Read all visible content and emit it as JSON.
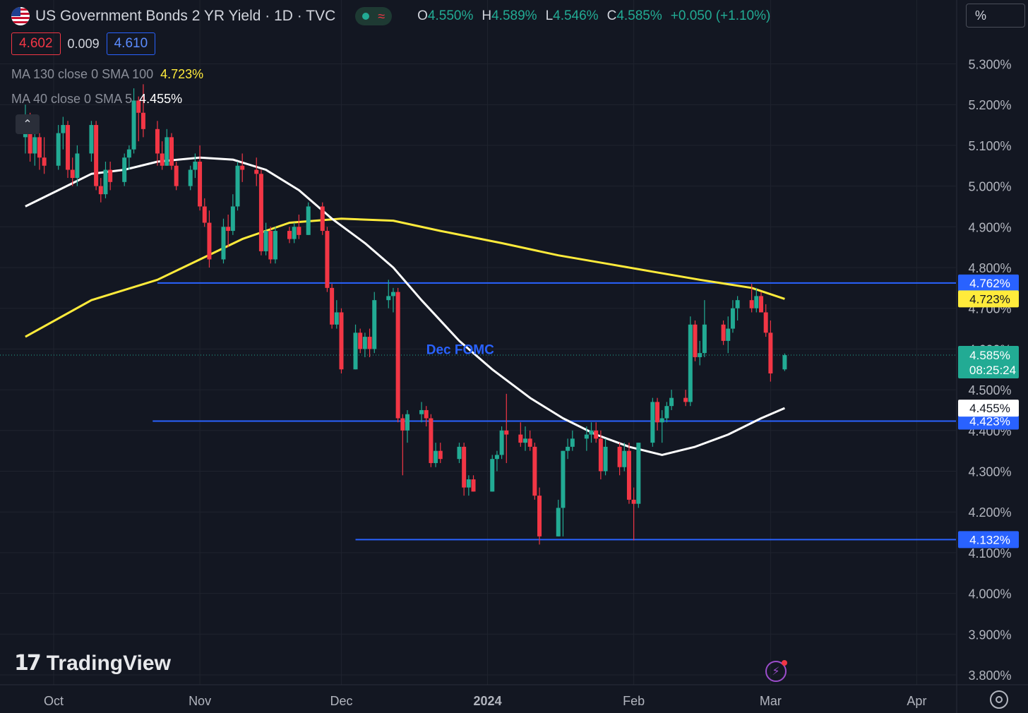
{
  "header": {
    "title": "US Government Bonds 2 YR Yield · 1D · TVC",
    "ohlc": [
      {
        "key": "O",
        "value": "4.550%"
      },
      {
        "key": "H",
        "value": "4.589%"
      },
      {
        "key": "L",
        "value": "4.546%"
      },
      {
        "key": "C",
        "value": "4.585%"
      }
    ],
    "change": "+0.050 (+1.10%)",
    "sell": "4.602",
    "spread": "0.009",
    "buy": "4.610",
    "scale_mode": "%"
  },
  "indicators": [
    {
      "label": "MA 130 close 0 SMA 100",
      "value": "4.723%",
      "color": "#ffeb3b"
    },
    {
      "label": "MA 40 close 0 SMA 5",
      "value": "4.455%",
      "color": "#ffffff"
    }
  ],
  "branding": {
    "logo": "TradingView"
  },
  "icons": {
    "settings": "gear-icon",
    "alert": "lightning-alert-icon",
    "collapse": "chevron-up-icon"
  },
  "chart_data": {
    "type": "candlestick",
    "title": "US Government Bonds 2 YR Yield · 1D · TVC",
    "ylim": [
      3.77,
      5.36
    ],
    "y_ticks": [
      "5.300%",
      "5.200%",
      "5.100%",
      "5.000%",
      "4.900%",
      "4.800%",
      "4.700%",
      "4.600%",
      "4.500%",
      "4.400%",
      "4.300%",
      "4.200%",
      "4.100%",
      "4.000%",
      "3.900%",
      "3.800%"
    ],
    "x_labels": [
      {
        "label": "Oct",
        "date": "2023-10-01",
        "bold": false
      },
      {
        "label": "Nov",
        "date": "2023-11-01",
        "bold": false
      },
      {
        "label": "Dec",
        "date": "2023-12-01",
        "bold": false
      },
      {
        "label": "2024",
        "date": "2024-01-01",
        "bold": true
      },
      {
        "label": "Feb",
        "date": "2024-02-01",
        "bold": false
      },
      {
        "label": "Mar",
        "date": "2024-03-01",
        "bold": false
      },
      {
        "label": "Apr",
        "date": "2024-04-01",
        "bold": false
      }
    ],
    "candles": [
      {
        "d": "2023-09-25",
        "o": 5.12,
        "h": 5.2,
        "l": 5.08,
        "c": 5.16
      },
      {
        "d": "2023-09-26",
        "o": 5.16,
        "h": 5.18,
        "l": 5.06,
        "c": 5.08
      },
      {
        "d": "2023-09-27",
        "o": 5.08,
        "h": 5.14,
        "l": 5.05,
        "c": 5.12
      },
      {
        "d": "2023-09-28",
        "o": 5.12,
        "h": 5.13,
        "l": 5.04,
        "c": 5.07
      },
      {
        "d": "2023-09-29",
        "o": 5.07,
        "h": 5.12,
        "l": 5.03,
        "c": 5.05
      },
      {
        "d": "2023-10-02",
        "o": 5.05,
        "h": 5.15,
        "l": 5.04,
        "c": 5.13
      },
      {
        "d": "2023-10-03",
        "o": 5.13,
        "h": 5.17,
        "l": 5.09,
        "c": 5.15
      },
      {
        "d": "2023-10-04",
        "o": 5.15,
        "h": 5.16,
        "l": 5.02,
        "c": 5.04
      },
      {
        "d": "2023-10-05",
        "o": 5.04,
        "h": 5.07,
        "l": 5.0,
        "c": 5.02
      },
      {
        "d": "2023-10-06",
        "o": 5.02,
        "h": 5.1,
        "l": 5.0,
        "c": 5.08
      },
      {
        "d": "2023-10-09",
        "o": 5.08,
        "h": 5.16,
        "l": 5.06,
        "c": 5.15
      },
      {
        "d": "2023-10-10",
        "o": 5.15,
        "h": 5.16,
        "l": 4.99,
        "c": 5.0
      },
      {
        "d": "2023-10-11",
        "o": 5.0,
        "h": 5.02,
        "l": 4.96,
        "c": 4.98
      },
      {
        "d": "2023-10-12",
        "o": 4.98,
        "h": 5.06,
        "l": 4.97,
        "c": 5.04
      },
      {
        "d": "2023-10-13",
        "o": 5.04,
        "h": 5.06,
        "l": 4.99,
        "c": 5.01
      },
      {
        "d": "2023-10-16",
        "o": 5.01,
        "h": 5.08,
        "l": 5.0,
        "c": 5.07
      },
      {
        "d": "2023-10-17",
        "o": 5.07,
        "h": 5.1,
        "l": 5.04,
        "c": 5.09
      },
      {
        "d": "2023-10-18",
        "o": 5.09,
        "h": 5.24,
        "l": 5.08,
        "c": 5.21
      },
      {
        "d": "2023-10-19",
        "o": 5.21,
        "h": 5.22,
        "l": 5.11,
        "c": 5.18
      },
      {
        "d": "2023-10-20",
        "o": 5.18,
        "h": 5.25,
        "l": 5.12,
        "c": 5.14
      },
      {
        "d": "2023-10-23",
        "o": 5.14,
        "h": 5.16,
        "l": 5.05,
        "c": 5.08
      },
      {
        "d": "2023-10-24",
        "o": 5.08,
        "h": 5.11,
        "l": 5.04,
        "c": 5.05
      },
      {
        "d": "2023-10-25",
        "o": 5.05,
        "h": 5.14,
        "l": 5.05,
        "c": 5.12
      },
      {
        "d": "2023-10-26",
        "o": 5.12,
        "h": 5.13,
        "l": 5.04,
        "c": 5.05
      },
      {
        "d": "2023-10-27",
        "o": 5.05,
        "h": 5.06,
        "l": 4.99,
        "c": 5.0
      },
      {
        "d": "2023-10-30",
        "o": 5.0,
        "h": 5.05,
        "l": 4.99,
        "c": 5.04
      },
      {
        "d": "2023-10-31",
        "o": 5.04,
        "h": 5.08,
        "l": 5.02,
        "c": 5.06
      },
      {
        "d": "2023-11-01",
        "o": 5.06,
        "h": 5.1,
        "l": 4.94,
        "c": 4.95
      },
      {
        "d": "2023-11-02",
        "o": 4.95,
        "h": 4.97,
        "l": 4.9,
        "c": 4.91
      },
      {
        "d": "2023-11-03",
        "o": 4.91,
        "h": 4.94,
        "l": 4.8,
        "c": 4.82
      },
      {
        "d": "2023-11-06",
        "o": 4.82,
        "h": 4.92,
        "l": 4.81,
        "c": 4.9
      },
      {
        "d": "2023-11-07",
        "o": 4.9,
        "h": 4.93,
        "l": 4.85,
        "c": 4.89
      },
      {
        "d": "2023-11-08",
        "o": 4.89,
        "h": 4.98,
        "l": 4.88,
        "c": 4.95
      },
      {
        "d": "2023-11-09",
        "o": 4.95,
        "h": 5.06,
        "l": 4.94,
        "c": 5.05
      },
      {
        "d": "2023-11-10",
        "o": 5.05,
        "h": 5.08,
        "l": 5.01,
        "c": 5.04
      },
      {
        "d": "2023-11-13",
        "o": 5.04,
        "h": 5.07,
        "l": 5.0,
        "c": 5.03
      },
      {
        "d": "2023-11-14",
        "o": 5.03,
        "h": 5.04,
        "l": 4.83,
        "c": 4.84
      },
      {
        "d": "2023-11-15",
        "o": 4.84,
        "h": 4.91,
        "l": 4.83,
        "c": 4.89
      },
      {
        "d": "2023-11-16",
        "o": 4.89,
        "h": 4.9,
        "l": 4.81,
        "c": 4.82
      },
      {
        "d": "2023-11-17",
        "o": 4.82,
        "h": 4.9,
        "l": 4.81,
        "c": 4.89
      },
      {
        "d": "2023-11-20",
        "o": 4.89,
        "h": 4.9,
        "l": 4.86,
        "c": 4.87
      },
      {
        "d": "2023-11-21",
        "o": 4.87,
        "h": 4.91,
        "l": 4.86,
        "c": 4.9
      },
      {
        "d": "2023-11-22",
        "o": 4.9,
        "h": 4.93,
        "l": 4.87,
        "c": 4.88
      },
      {
        "d": "2023-11-24",
        "o": 4.88,
        "h": 4.96,
        "l": 4.88,
        "c": 4.95
      },
      {
        "d": "2023-11-27",
        "o": 4.95,
        "h": 4.96,
        "l": 4.88,
        "c": 4.89
      },
      {
        "d": "2023-11-28",
        "o": 4.89,
        "h": 4.9,
        "l": 4.74,
        "c": 4.75
      },
      {
        "d": "2023-11-29",
        "o": 4.75,
        "h": 4.76,
        "l": 4.65,
        "c": 4.66
      },
      {
        "d": "2023-11-30",
        "o": 4.66,
        "h": 4.72,
        "l": 4.65,
        "c": 4.69
      },
      {
        "d": "2023-12-01",
        "o": 4.69,
        "h": 4.7,
        "l": 4.54,
        "c": 4.55
      },
      {
        "d": "2023-12-04",
        "o": 4.55,
        "h": 4.66,
        "l": 4.55,
        "c": 4.64
      },
      {
        "d": "2023-12-05",
        "o": 4.64,
        "h": 4.65,
        "l": 4.59,
        "c": 4.6
      },
      {
        "d": "2023-12-06",
        "o": 4.6,
        "h": 4.64,
        "l": 4.58,
        "c": 4.63
      },
      {
        "d": "2023-12-07",
        "o": 4.63,
        "h": 4.65,
        "l": 4.58,
        "c": 4.6
      },
      {
        "d": "2023-12-08",
        "o": 4.6,
        "h": 4.74,
        "l": 4.59,
        "c": 4.72
      },
      {
        "d": "2023-12-11",
        "o": 4.72,
        "h": 4.77,
        "l": 4.7,
        "c": 4.73
      },
      {
        "d": "2023-12-12",
        "o": 4.73,
        "h": 4.75,
        "l": 4.69,
        "c": 4.74
      },
      {
        "d": "2023-12-13",
        "o": 4.74,
        "h": 4.75,
        "l": 4.42,
        "c": 4.43
      },
      {
        "d": "2023-12-14",
        "o": 4.43,
        "h": 4.44,
        "l": 4.29,
        "c": 4.4
      },
      {
        "d": "2023-12-15",
        "o": 4.4,
        "h": 4.45,
        "l": 4.37,
        "c": 4.44
      },
      {
        "d": "2023-12-18",
        "o": 4.44,
        "h": 4.47,
        "l": 4.42,
        "c": 4.45
      },
      {
        "d": "2023-12-19",
        "o": 4.45,
        "h": 4.46,
        "l": 4.41,
        "c": 4.43
      },
      {
        "d": "2023-12-20",
        "o": 4.43,
        "h": 4.44,
        "l": 4.31,
        "c": 4.32
      },
      {
        "d": "2023-12-21",
        "o": 4.32,
        "h": 4.37,
        "l": 4.31,
        "c": 4.35
      },
      {
        "d": "2023-12-22",
        "o": 4.35,
        "h": 4.37,
        "l": 4.32,
        "c": 4.33
      },
      {
        "d": "2023-12-26",
        "o": 4.33,
        "h": 4.37,
        "l": 4.32,
        "c": 4.36
      },
      {
        "d": "2023-12-27",
        "o": 4.36,
        "h": 4.37,
        "l": 4.24,
        "c": 4.26
      },
      {
        "d": "2023-12-28",
        "o": 4.26,
        "h": 4.29,
        "l": 4.24,
        "c": 4.28
      },
      {
        "d": "2023-12-29",
        "o": 4.28,
        "h": 4.29,
        "l": 4.25,
        "c": 4.25
      },
      {
        "d": "2024-01-02",
        "o": 4.25,
        "h": 4.34,
        "l": 4.25,
        "c": 4.33
      },
      {
        "d": "2024-01-03",
        "o": 4.33,
        "h": 4.35,
        "l": 4.3,
        "c": 4.34
      },
      {
        "d": "2024-01-04",
        "o": 4.34,
        "h": 4.41,
        "l": 4.33,
        "c": 4.4
      },
      {
        "d": "2024-01-05",
        "o": 4.4,
        "h": 4.49,
        "l": 4.32,
        "c": 4.39
      },
      {
        "d": "2024-01-08",
        "o": 4.39,
        "h": 4.42,
        "l": 4.36,
        "c": 4.37
      },
      {
        "d": "2024-01-09",
        "o": 4.37,
        "h": 4.41,
        "l": 4.35,
        "c": 4.38
      },
      {
        "d": "2024-01-10",
        "o": 4.38,
        "h": 4.4,
        "l": 4.35,
        "c": 4.36
      },
      {
        "d": "2024-01-11",
        "o": 4.36,
        "h": 4.37,
        "l": 4.23,
        "c": 4.24
      },
      {
        "d": "2024-01-12",
        "o": 4.24,
        "h": 4.26,
        "l": 4.12,
        "c": 4.14
      },
      {
        "d": "2024-01-16",
        "o": 4.14,
        "h": 4.23,
        "l": 4.14,
        "c": 4.21
      },
      {
        "d": "2024-01-17",
        "o": 4.21,
        "h": 4.35,
        "l": 4.14,
        "c": 4.35
      },
      {
        "d": "2024-01-18",
        "o": 4.35,
        "h": 4.38,
        "l": 4.33,
        "c": 4.36
      },
      {
        "d": "2024-01-19",
        "o": 4.36,
        "h": 4.4,
        "l": 4.35,
        "c": 4.38
      },
      {
        "d": "2024-01-22",
        "o": 4.38,
        "h": 4.41,
        "l": 4.35,
        "c": 4.39
      },
      {
        "d": "2024-01-23",
        "o": 4.39,
        "h": 4.42,
        "l": 4.37,
        "c": 4.4
      },
      {
        "d": "2024-01-24",
        "o": 4.4,
        "h": 4.42,
        "l": 4.37,
        "c": 4.38
      },
      {
        "d": "2024-01-25",
        "o": 4.38,
        "h": 4.4,
        "l": 4.28,
        "c": 4.3
      },
      {
        "d": "2024-01-26",
        "o": 4.3,
        "h": 4.38,
        "l": 4.29,
        "c": 4.36
      },
      {
        "d": "2024-01-29",
        "o": 4.36,
        "h": 4.37,
        "l": 4.29,
        "c": 4.31
      },
      {
        "d": "2024-01-30",
        "o": 4.31,
        "h": 4.37,
        "l": 4.3,
        "c": 4.35
      },
      {
        "d": "2024-01-31",
        "o": 4.35,
        "h": 4.37,
        "l": 4.22,
        "c": 4.23
      },
      {
        "d": "2024-02-01",
        "o": 4.23,
        "h": 4.26,
        "l": 4.13,
        "c": 4.22
      },
      {
        "d": "2024-02-02",
        "o": 4.22,
        "h": 4.37,
        "l": 4.21,
        "c": 4.37
      },
      {
        "d": "2024-02-05",
        "o": 4.37,
        "h": 4.48,
        "l": 4.36,
        "c": 4.47
      },
      {
        "d": "2024-02-06",
        "o": 4.47,
        "h": 4.48,
        "l": 4.4,
        "c": 4.42
      },
      {
        "d": "2024-02-07",
        "o": 4.42,
        "h": 4.45,
        "l": 4.37,
        "c": 4.43
      },
      {
        "d": "2024-02-08",
        "o": 4.43,
        "h": 4.47,
        "l": 4.42,
        "c": 4.46
      },
      {
        "d": "2024-02-09",
        "o": 4.46,
        "h": 4.5,
        "l": 4.45,
        "c": 4.48
      },
      {
        "d": "2024-02-12",
        "o": 4.48,
        "h": 4.5,
        "l": 4.46,
        "c": 4.47
      },
      {
        "d": "2024-02-13",
        "o": 4.47,
        "h": 4.68,
        "l": 4.46,
        "c": 4.66
      },
      {
        "d": "2024-02-14",
        "o": 4.66,
        "h": 4.67,
        "l": 4.57,
        "c": 4.58
      },
      {
        "d": "2024-02-15",
        "o": 4.58,
        "h": 4.62,
        "l": 4.56,
        "c": 4.59
      },
      {
        "d": "2024-02-16",
        "o": 4.59,
        "h": 4.72,
        "l": 4.58,
        "c": 4.66
      },
      {
        "d": "2024-02-20",
        "o": 4.66,
        "h": 4.67,
        "l": 4.61,
        "c": 4.62
      },
      {
        "d": "2024-02-21",
        "o": 4.62,
        "h": 4.68,
        "l": 4.59,
        "c": 4.65
      },
      {
        "d": "2024-02-22",
        "o": 4.65,
        "h": 4.72,
        "l": 4.64,
        "c": 4.7
      },
      {
        "d": "2024-02-23",
        "o": 4.7,
        "h": 4.73,
        "l": 4.67,
        "c": 4.72
      },
      {
        "d": "2024-02-26",
        "o": 4.72,
        "h": 4.76,
        "l": 4.69,
        "c": 4.7
      },
      {
        "d": "2024-02-27",
        "o": 4.7,
        "h": 4.75,
        "l": 4.69,
        "c": 4.73
      },
      {
        "d": "2024-02-28",
        "o": 4.73,
        "h": 4.74,
        "l": 4.69,
        "c": 4.69
      },
      {
        "d": "2024-02-29",
        "o": 4.69,
        "h": 4.71,
        "l": 4.63,
        "c": 4.64
      },
      {
        "d": "2024-03-01",
        "o": 4.64,
        "h": 4.67,
        "l": 4.52,
        "c": 4.54
      },
      {
        "d": "2024-03-04",
        "o": 4.55,
        "h": 4.589,
        "l": 4.546,
        "c": 4.585
      }
    ],
    "series": [
      {
        "name": "MA 130 close 0 SMA 100",
        "color": "#ffeb3b",
        "points": [
          [
            "2023-09-25",
            4.63
          ],
          [
            "2023-10-09",
            4.72
          ],
          [
            "2023-10-23",
            4.77
          ],
          [
            "2023-11-01",
            4.82
          ],
          [
            "2023-11-10",
            4.87
          ],
          [
            "2023-11-20",
            4.91
          ],
          [
            "2023-12-01",
            4.92
          ],
          [
            "2023-12-12",
            4.915
          ],
          [
            "2023-12-22",
            4.89
          ],
          [
            "2024-01-04",
            4.86
          ],
          [
            "2024-01-16",
            4.83
          ],
          [
            "2024-01-26",
            4.81
          ],
          [
            "2024-02-05",
            4.79
          ],
          [
            "2024-02-15",
            4.77
          ],
          [
            "2024-02-26",
            4.75
          ],
          [
            "2024-03-04",
            4.723
          ]
        ]
      },
      {
        "name": "MA 40 close 0 SMA 5",
        "color": "#ffffff",
        "points": [
          [
            "2023-09-25",
            4.95
          ],
          [
            "2023-10-02",
            4.99
          ],
          [
            "2023-10-09",
            5.03
          ],
          [
            "2023-10-16",
            5.04
          ],
          [
            "2023-10-23",
            5.06
          ],
          [
            "2023-11-01",
            5.07
          ],
          [
            "2023-11-08",
            5.065
          ],
          [
            "2023-11-15",
            5.04
          ],
          [
            "2023-11-22",
            4.99
          ],
          [
            "2023-11-29",
            4.92
          ],
          [
            "2023-12-06",
            4.86
          ],
          [
            "2023-12-12",
            4.8
          ],
          [
            "2023-12-18",
            4.72
          ],
          [
            "2023-12-26",
            4.62
          ],
          [
            "2024-01-02",
            4.55
          ],
          [
            "2024-01-10",
            4.48
          ],
          [
            "2024-01-17",
            4.43
          ],
          [
            "2024-01-24",
            4.39
          ],
          [
            "2024-01-31",
            4.36
          ],
          [
            "2024-02-07",
            4.34
          ],
          [
            "2024-02-14",
            4.36
          ],
          [
            "2024-02-21",
            4.39
          ],
          [
            "2024-02-28",
            4.43
          ],
          [
            "2024-03-04",
            4.455
          ]
        ]
      }
    ],
    "hlines": [
      {
        "label": "4.762%",
        "value": 4.762,
        "from": "2023-10-23",
        "color": "#2962ff"
      },
      {
        "label": "4.423%",
        "value": 4.423,
        "from": "2023-10-22",
        "color": "#2962ff"
      },
      {
        "label": "4.132%",
        "value": 4.132,
        "from": "2023-12-04",
        "color": "#2962ff"
      }
    ],
    "annotations": [
      {
        "text": "Dec FOMC",
        "date": "2023-12-19",
        "value": 4.6,
        "color": "#2962ff"
      }
    ],
    "last_price": {
      "value": 4.585,
      "label": "4.585%",
      "countdown": "08:25:24"
    },
    "axis_tags": [
      {
        "label": "4.723%",
        "value": 4.723,
        "bg": "#ffeb3b",
        "fg": "#131722"
      },
      {
        "label": "4.455%",
        "value": 4.455,
        "bg": "#ffffff",
        "fg": "#131722"
      }
    ],
    "colors": {
      "up": "#22ab94",
      "down": "#f23645",
      "grid": "#1f232e",
      "axis_text": "#b2b5be"
    }
  }
}
